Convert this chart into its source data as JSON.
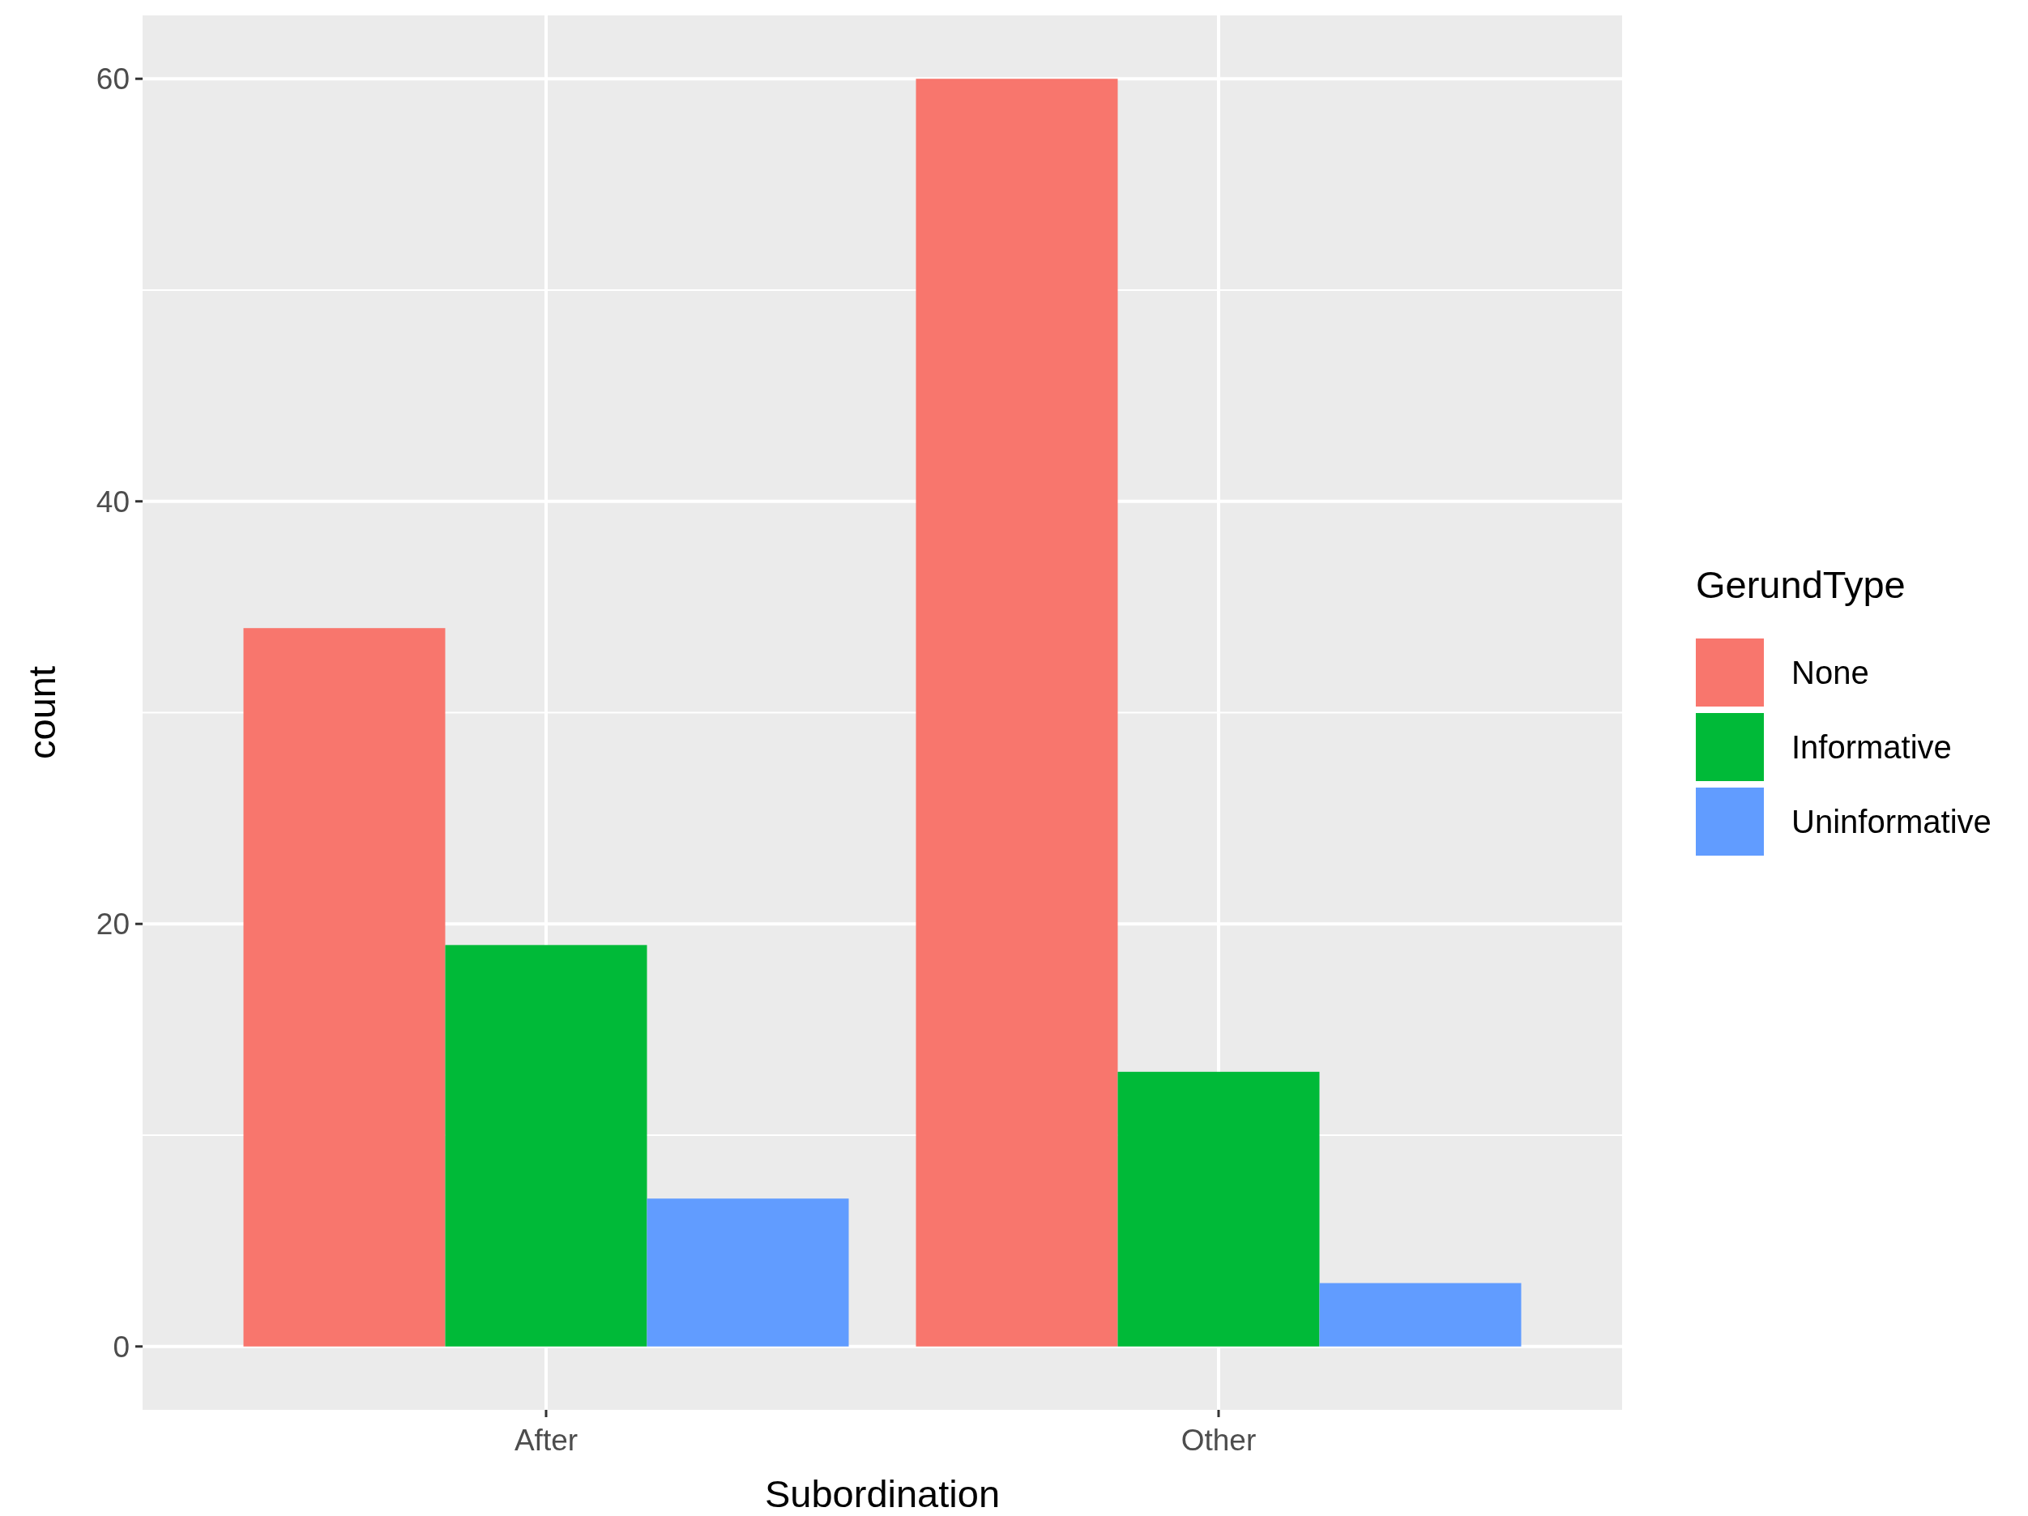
{
  "chart_data": {
    "type": "bar",
    "xlabel": "Subordination",
    "ylabel": "count",
    "legend_title": "GerundType",
    "categories": [
      "After",
      "Other"
    ],
    "series": [
      {
        "name": "None",
        "color": "#f8766d",
        "values": [
          34,
          60
        ]
      },
      {
        "name": "Informative",
        "color": "#00ba38",
        "values": [
          19,
          13
        ]
      },
      {
        "name": "Uninformative",
        "color": "#619cff",
        "values": [
          7,
          3
        ]
      }
    ],
    "ylim": [
      -3,
      63
    ],
    "yticks": [
      0,
      {
        "value": 10,
        "label": null
      },
      20,
      {
        "value": 30,
        "label": null
      },
      40,
      {
        "value": 50,
        "label": null
      },
      60
    ],
    "grid": true,
    "legend": "right"
  }
}
